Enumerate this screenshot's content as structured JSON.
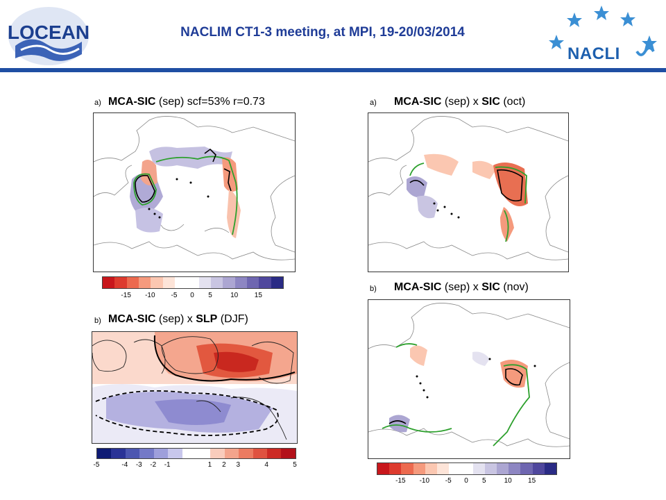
{
  "header": {
    "title": "NACLIM CT1-3 meeting, at MPI, 19-20/03/2014",
    "logo_left": "LOCEAN",
    "logo_right": "NACLI"
  },
  "colors": {
    "header_rule": "#1f4ea3",
    "title": "#1f3c97",
    "contour_green": "#2ca02c",
    "sic_scale": [
      "#c8171c",
      "#dd3b2e",
      "#ec6a4f",
      "#f59a7d",
      "#fbc7b1",
      "#fde4d8",
      "#ffffff",
      "#ffffff",
      "#e4e2f0",
      "#c9c5e2",
      "#aca6d2",
      "#8d86c2",
      "#6e66b0",
      "#4f479d",
      "#2a2b85"
    ],
    "slp_scale": [
      "#0e1b74",
      "#2a3396",
      "#4c56b0",
      "#7479c7",
      "#9e9fdb",
      "#c8c7ec",
      "#ffffff",
      "#ffffff",
      "#f9ccbc",
      "#f3a48c",
      "#eb7b61",
      "#df5240",
      "#cc2a24",
      "#b3111a"
    ]
  },
  "panels": {
    "left_top": {
      "label": "a)",
      "title_bold1": "MCA-SIC",
      "title_rest": " (sep) scf=53% r=0.73"
    },
    "left_bottom": {
      "label": "b)",
      "title_bold1": "MCA-SIC",
      "title_mid": " (sep) x ",
      "title_bold2": "SLP",
      "title_rest": " (DJF)"
    },
    "right_top": {
      "label": "a)",
      "title_bold1": "MCA-SIC",
      "title_mid": " (sep) x ",
      "title_bold2": "SIC",
      "title_rest": " (oct)"
    },
    "right_bottom": {
      "label": "b)",
      "title_bold1": "MCA-SIC",
      "title_mid": " (sep) x ",
      "title_bold2": "SIC",
      "title_rest": " (nov)"
    }
  },
  "colorbars": {
    "sic_ticks": [
      "-15",
      "-10",
      "-5",
      "0",
      "5",
      "10",
      "15"
    ],
    "slp_ticks": [
      "-5",
      "-4",
      "-3",
      "-2",
      "-1",
      "1",
      "2",
      "3",
      "4",
      "5"
    ]
  }
}
